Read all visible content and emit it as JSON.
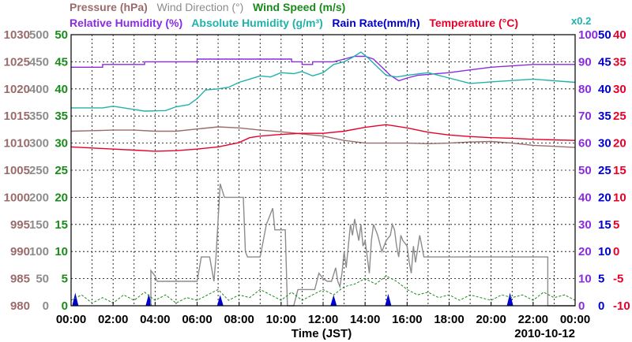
{
  "legend": {
    "row1": [
      {
        "label": "Pressure (hPa)",
        "color": "#9b6b6b"
      },
      {
        "label": "Wind Direction (°)",
        "color": "#8c8c8c"
      },
      {
        "label": "Wind Speed (m/s)",
        "color": "#1a8a1a"
      }
    ],
    "row2": [
      {
        "label": "Relative Humidity (%)",
        "color": "#8a2be2"
      },
      {
        "label": "Absolute Humidity (g/m³)",
        "color": "#20b2aa"
      },
      {
        "label": "Rain Rate(mm/h)",
        "color": "#0000cc"
      },
      {
        "label": "Temperature (°C)",
        "color": "#e8002a"
      }
    ],
    "rain_multiplier": "x0.2"
  },
  "date_label": "2010-10-12",
  "chart_data": {
    "type": "line",
    "xlabel": "Time (JST)",
    "x_ticks": [
      "00:00",
      "02:00",
      "04:00",
      "06:00",
      "08:00",
      "10:00",
      "12:00",
      "14:00",
      "16:00",
      "18:00",
      "20:00",
      "22:00",
      "00:00"
    ],
    "xlim_hours": [
      0,
      24
    ],
    "grid": true,
    "axes": {
      "pressure": {
        "side": "left",
        "color": "#9b6b6b",
        "range": [
          980,
          1030
        ],
        "ticks": [
          980,
          985,
          990,
          995,
          1000,
          1005,
          1010,
          1015,
          1020,
          1025,
          1030
        ]
      },
      "wind_direction": {
        "side": "left",
        "color": "#8c8c8c",
        "range": [
          0,
          500
        ],
        "ticks": [
          0,
          50,
          100,
          150,
          200,
          250,
          300,
          350,
          400,
          450,
          500
        ]
      },
      "wind_speed": {
        "side": "left",
        "color": "#1a8a1a",
        "range": [
          0,
          50
        ],
        "ticks": [
          0,
          5,
          10,
          15,
          20,
          25,
          30,
          35,
          40,
          45,
          50
        ]
      },
      "relative_humidity": {
        "side": "right",
        "color": "#8a2be2",
        "range": [
          0,
          100
        ],
        "ticks": [
          0,
          10,
          20,
          30,
          40,
          50,
          60,
          70,
          80,
          90,
          100
        ]
      },
      "rain_rate": {
        "side": "right",
        "color": "#0000cc",
        "range": [
          0,
          50
        ],
        "ticks": [
          0,
          5,
          10,
          15,
          20,
          25,
          30,
          35,
          40,
          45,
          50
        ]
      },
      "temperature": {
        "side": "right",
        "color": "#e8002a",
        "range": [
          -10,
          40
        ],
        "ticks": [
          -10,
          -5,
          0,
          5,
          10,
          15,
          20,
          25,
          30,
          35,
          40
        ]
      }
    },
    "series": [
      {
        "name": "Relative Humidity (%)",
        "axis": "relative_humidity",
        "color": "#8a2be2",
        "points": [
          [
            0,
            88
          ],
          [
            1.5,
            88
          ],
          [
            1.5,
            89
          ],
          [
            3.5,
            89
          ],
          [
            3.5,
            90
          ],
          [
            6,
            90
          ],
          [
            6,
            91
          ],
          [
            10.5,
            91
          ],
          [
            10.5,
            90
          ],
          [
            11,
            90
          ],
          [
            11,
            89
          ],
          [
            11.5,
            89
          ],
          [
            11.5,
            90
          ],
          [
            12.5,
            90
          ],
          [
            13,
            91
          ],
          [
            13.5,
            92
          ],
          [
            14,
            92
          ],
          [
            14.4,
            91
          ],
          [
            14.8,
            88
          ],
          [
            15.2,
            85
          ],
          [
            15.6,
            83
          ],
          [
            16,
            84
          ],
          [
            16.5,
            85
          ],
          [
            18,
            86
          ],
          [
            19,
            87
          ],
          [
            20,
            88
          ],
          [
            22,
            89
          ],
          [
            24,
            89
          ]
        ]
      },
      {
        "name": "Absolute Humidity (g/m³)",
        "axis": "wind_speed",
        "color": "#20b2aa",
        "points": [
          [
            0,
            36.5
          ],
          [
            1.5,
            36.5
          ],
          [
            2,
            36.8
          ],
          [
            3,
            36.2
          ],
          [
            3.5,
            35.9
          ],
          [
            4.5,
            36
          ],
          [
            5,
            36.7
          ],
          [
            5.6,
            37.1
          ],
          [
            6,
            38.2
          ],
          [
            6.4,
            39.8
          ],
          [
            7,
            40
          ],
          [
            7.5,
            40.3
          ],
          [
            8,
            41.2
          ],
          [
            8.5,
            41.8
          ],
          [
            9,
            42.4
          ],
          [
            9.5,
            42.2
          ],
          [
            10,
            43
          ],
          [
            10.6,
            42.8
          ],
          [
            11,
            43.2
          ],
          [
            11.5,
            42.4
          ],
          [
            12,
            43
          ],
          [
            12.5,
            44.5
          ],
          [
            13,
            45
          ],
          [
            13.4,
            45.8
          ],
          [
            13.8,
            46.8
          ],
          [
            14.2,
            45.5
          ],
          [
            14.6,
            44
          ],
          [
            15,
            42.5
          ],
          [
            15.5,
            42.2
          ],
          [
            16,
            42.5
          ],
          [
            17,
            43
          ],
          [
            18,
            42
          ],
          [
            19,
            41
          ],
          [
            20,
            41.3
          ],
          [
            22,
            41.8
          ],
          [
            24,
            41.2
          ]
        ]
      },
      {
        "name": "Pressure (hPa)",
        "axis": "pressure",
        "color": "#9b6b6b",
        "points": [
          [
            0,
            1012.2
          ],
          [
            1,
            1012.3
          ],
          [
            2,
            1012.4
          ],
          [
            3,
            1012.4
          ],
          [
            4,
            1012.2
          ],
          [
            5,
            1012.2
          ],
          [
            6,
            1012.6
          ],
          [
            7,
            1013
          ],
          [
            8,
            1012.8
          ],
          [
            9,
            1012.4
          ],
          [
            10,
            1012.1
          ],
          [
            11,
            1011.7
          ],
          [
            12,
            1011.3
          ],
          [
            13,
            1010.5
          ],
          [
            14,
            1010
          ],
          [
            15,
            1010
          ],
          [
            16,
            1010
          ],
          [
            17,
            1009.9
          ],
          [
            18,
            1010
          ],
          [
            19,
            1010.2
          ],
          [
            20,
            1010.3
          ],
          [
            21,
            1010
          ],
          [
            22,
            1009.6
          ],
          [
            23,
            1009.4
          ],
          [
            24,
            1009.2
          ]
        ]
      },
      {
        "name": "Temperature (°C)",
        "axis": "temperature",
        "color": "#e8002a",
        "points": [
          [
            0,
            19.3
          ],
          [
            1,
            19.1
          ],
          [
            2,
            18.9
          ],
          [
            3,
            18.7
          ],
          [
            4,
            18.5
          ],
          [
            5,
            18.6
          ],
          [
            6,
            18.9
          ],
          [
            7,
            19.3
          ],
          [
            8,
            20.1
          ],
          [
            8.5,
            21
          ],
          [
            9,
            21.3
          ],
          [
            10,
            21.6
          ],
          [
            11,
            21.8
          ],
          [
            12,
            21.8
          ],
          [
            13,
            22.2
          ],
          [
            14,
            22.9
          ],
          [
            15,
            23.4
          ],
          [
            16,
            22.8
          ],
          [
            17,
            22
          ],
          [
            18,
            21.5
          ],
          [
            19,
            21.2
          ],
          [
            20,
            21
          ],
          [
            21,
            20.9
          ],
          [
            22,
            20.7
          ],
          [
            23,
            20.6
          ],
          [
            24,
            20.5
          ]
        ]
      },
      {
        "name": "Wind Direction (°)",
        "axis": "wind_direction",
        "color": "#8c8c8c",
        "points": [
          [
            3.8,
            0
          ],
          [
            3.8,
            65
          ],
          [
            4,
            55
          ],
          [
            4.1,
            45
          ],
          [
            4.6,
            45
          ],
          [
            5.3,
            45
          ],
          [
            6,
            45
          ],
          [
            6.2,
            90
          ],
          [
            6.6,
            90
          ],
          [
            6.8,
            45
          ],
          [
            6.9,
            90
          ],
          [
            7.1,
            225
          ],
          [
            7.3,
            200
          ],
          [
            8.2,
            200
          ],
          [
            8.3,
            100
          ],
          [
            8.4,
            90
          ],
          [
            8.6,
            90
          ],
          [
            9,
            90
          ],
          [
            9.3,
            150
          ],
          [
            9.6,
            180
          ],
          [
            9.7,
            140
          ],
          [
            10.2,
            140
          ],
          [
            10.3,
            0
          ],
          [
            10.6,
            0
          ],
          [
            10.8,
            30
          ],
          [
            11.6,
            30
          ],
          [
            11.8,
            60
          ],
          [
            12,
            50
          ],
          [
            12.2,
            45
          ],
          [
            12.4,
            45
          ],
          [
            12.6,
            70
          ],
          [
            12.7,
            45
          ],
          [
            12.8,
            35
          ],
          [
            12.9,
            60
          ],
          [
            13,
            100
          ],
          [
            13.1,
            70
          ],
          [
            13.2,
            110
          ],
          [
            13.3,
            150
          ],
          [
            13.4,
            130
          ],
          [
            13.5,
            160
          ],
          [
            13.6,
            140
          ],
          [
            13.7,
            120
          ],
          [
            13.8,
            150
          ],
          [
            13.9,
            110
          ],
          [
            14,
            120
          ],
          [
            14.2,
            60
          ],
          [
            14.3,
            120
          ],
          [
            14.4,
            150
          ],
          [
            14.5,
            140
          ],
          [
            14.6,
            130
          ],
          [
            14.8,
            100
          ],
          [
            15,
            120
          ],
          [
            15.2,
            130
          ],
          [
            15.3,
            150
          ],
          [
            15.4,
            140
          ],
          [
            15.5,
            110
          ],
          [
            15.6,
            90
          ],
          [
            15.7,
            130
          ],
          [
            15.8,
            120
          ],
          [
            16,
            110
          ],
          [
            16.1,
            80
          ],
          [
            16.2,
            60
          ],
          [
            16.3,
            110
          ],
          [
            16.4,
            80
          ],
          [
            16.6,
            130
          ],
          [
            16.8,
            90
          ],
          [
            17,
            90
          ],
          [
            22.7,
            90
          ],
          [
            22.7,
            0
          ],
          [
            24,
            0
          ]
        ]
      },
      {
        "name": "Wind Speed (m/s)",
        "axis": "wind_speed",
        "color": "#1a8a1a",
        "dashed": true,
        "points": [
          [
            0,
            1
          ],
          [
            0.5,
            2
          ],
          [
            1,
            0.5
          ],
          [
            1.5,
            1.5
          ],
          [
            2,
            0.5
          ],
          [
            2.5,
            2
          ],
          [
            3,
            1
          ],
          [
            3.5,
            2.5
          ],
          [
            4,
            1
          ],
          [
            4.5,
            2
          ],
          [
            5,
            0.5
          ],
          [
            5.5,
            1.5
          ],
          [
            6,
            1
          ],
          [
            6.5,
            2
          ],
          [
            7,
            3
          ],
          [
            7.5,
            1
          ],
          [
            8,
            2
          ],
          [
            8.5,
            1.5
          ],
          [
            9,
            3
          ],
          [
            9.5,
            2
          ],
          [
            10,
            1
          ],
          [
            10.5,
            2.5
          ],
          [
            11,
            1
          ],
          [
            11.5,
            2
          ],
          [
            12,
            3
          ],
          [
            12.5,
            2
          ],
          [
            13,
            3.5
          ],
          [
            13.5,
            4
          ],
          [
            14,
            5
          ],
          [
            14.5,
            4
          ],
          [
            15,
            5.5
          ],
          [
            15.5,
            4.5
          ],
          [
            16,
            3
          ],
          [
            16.5,
            2
          ],
          [
            17,
            2.5
          ],
          [
            17.5,
            1.5
          ],
          [
            18,
            2
          ],
          [
            18.5,
            1
          ],
          [
            19,
            2
          ],
          [
            19.5,
            1.5
          ],
          [
            20,
            1
          ],
          [
            20.5,
            2
          ],
          [
            21,
            1.5
          ],
          [
            21.5,
            2
          ],
          [
            22,
            1
          ],
          [
            22.5,
            2.5
          ],
          [
            23,
            1.5
          ],
          [
            23.5,
            2
          ],
          [
            24,
            1
          ]
        ]
      }
    ],
    "rain_events": [
      {
        "time": 0.2,
        "value": 2.4
      },
      {
        "time": 3.7,
        "value": 2.2
      },
      {
        "time": 7.1,
        "value": 2.0
      },
      {
        "time": 12.5,
        "value": 2.0
      },
      {
        "time": 15.1,
        "value": 2.2
      },
      {
        "time": 20.9,
        "value": 2.4
      }
    ]
  }
}
